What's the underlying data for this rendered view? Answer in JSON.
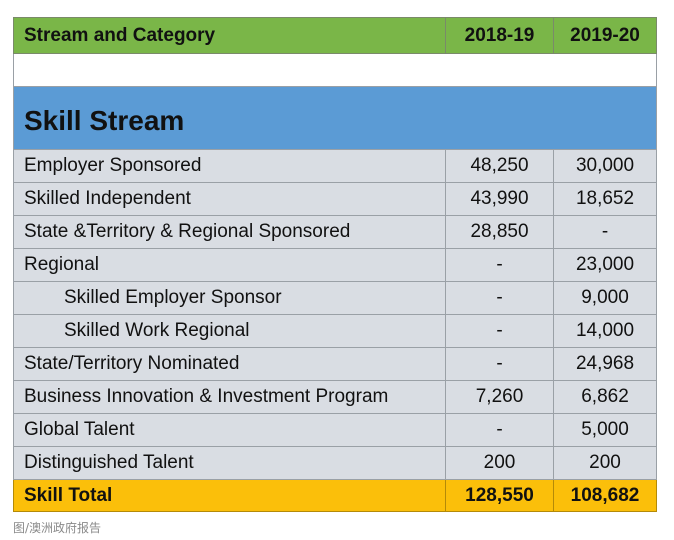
{
  "table": {
    "header": {
      "label": "Stream and Category",
      "col1": "2018-19",
      "col2": "2019-20"
    },
    "section_title": "Skill Stream",
    "rows": [
      {
        "label": "Employer Sponsored",
        "v1": "48,250",
        "v2": "30,000"
      },
      {
        "label": "Skilled Independent",
        "v1": "43,990",
        "v2": "18,652"
      },
      {
        "label": "State &Territory & Regional Sponsored",
        "v1": "28,850",
        "v2": "-"
      },
      {
        "label": "Regional",
        "v1": "-",
        "v2": "23,000"
      },
      {
        "label": "Skilled Employer Sponsor",
        "v1": "-",
        "v2": "9,000"
      },
      {
        "label": "Skilled Work Regional",
        "v1": "-",
        "v2": "14,000"
      },
      {
        "label": "State/Territory Nominated",
        "v1": "-",
        "v2": "24,968"
      },
      {
        "label": "Business Innovation & Investment Program",
        "v1": "7,260",
        "v2": "6,862"
      },
      {
        "label": "Global Talent",
        "v1": "-",
        "v2": "5,000"
      },
      {
        "label": "Distinguished Talent",
        "v1": "200",
        "v2": "200"
      }
    ],
    "total": {
      "label": "Skill Total",
      "v1": "128,550",
      "v2": "108,682"
    }
  },
  "caption": "图/澳洲政府报告",
  "colors": {
    "header_bg": "#7ab648",
    "section_bg": "#5b9bd5",
    "row_bg": "#d9dde3",
    "total_bg": "#fbbf0a"
  }
}
